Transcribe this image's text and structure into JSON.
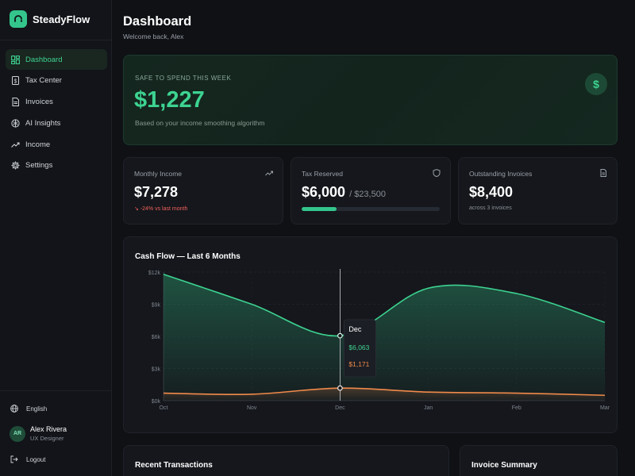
{
  "sidebar": {
    "brand": "SteadyFlow",
    "nav": [
      {
        "label": "Dashboard",
        "icon": "dashboard-grid-icon",
        "active": true
      },
      {
        "label": "Tax Center",
        "icon": "receipt-dollar-icon",
        "active": false
      },
      {
        "label": "Invoices",
        "icon": "document-icon",
        "active": false
      },
      {
        "label": "AI Insights",
        "icon": "brain-icon",
        "active": false
      },
      {
        "label": "Income",
        "icon": "trending-up-icon",
        "active": false
      },
      {
        "label": "Settings",
        "icon": "gear-icon",
        "active": false
      }
    ],
    "language": "English",
    "user": {
      "initials": "AR",
      "name": "Alex Rivera",
      "role": "UX Designer"
    },
    "logout": "Logout"
  },
  "header": {
    "title": "Dashboard",
    "subtitle": "Welcome back, Alex"
  },
  "hero": {
    "label": "SAFE TO SPEND THIS WEEK",
    "value": "$1,227",
    "note": "Based on your income smoothing algorithm",
    "icon": "dollar-sign-icon"
  },
  "stats": [
    {
      "label": "Monthly Income",
      "icon": "trending-up-icon",
      "value": "$7,278",
      "note": "-24% vs last month"
    },
    {
      "label": "Tax Reserved",
      "icon": "shield-icon",
      "value": "$6,000",
      "value_sub": "/ $23,500",
      "progress": 0.255
    },
    {
      "label": "Outstanding Invoices",
      "icon": "document-icon",
      "value": "$8,400",
      "note": "across 3 invoices"
    }
  ],
  "colors": {
    "accent": "#3dd391",
    "income_line": "#3dd391",
    "expense_line": "#f08a4b",
    "negative": "#f0605b"
  },
  "chart_data": {
    "type": "area",
    "title": "Cash Flow — Last 6 Months",
    "categories": [
      "Oct",
      "Nov",
      "Dec",
      "Jan",
      "Feb",
      "Mar"
    ],
    "ytick_labels": [
      "$0k",
      "$3k",
      "$6k",
      "$9k",
      "$12k"
    ],
    "ylim": [
      0,
      12000
    ],
    "series": [
      {
        "values": [
          11800,
          9000,
          6063,
          10500,
          10000,
          7300
        ],
        "color": "#3dd391"
      },
      {
        "values": [
          700,
          600,
          1171,
          800,
          700,
          500
        ],
        "color": "#f08a4b"
      }
    ],
    "tooltip": {
      "category": "Dec",
      "lines": [
        "$6,063",
        "$1,171"
      ]
    },
    "grid": true,
    "legend": "none"
  },
  "bottom": {
    "transactions_title": "Recent Transactions",
    "invoice_title": "Invoice Summary"
  }
}
